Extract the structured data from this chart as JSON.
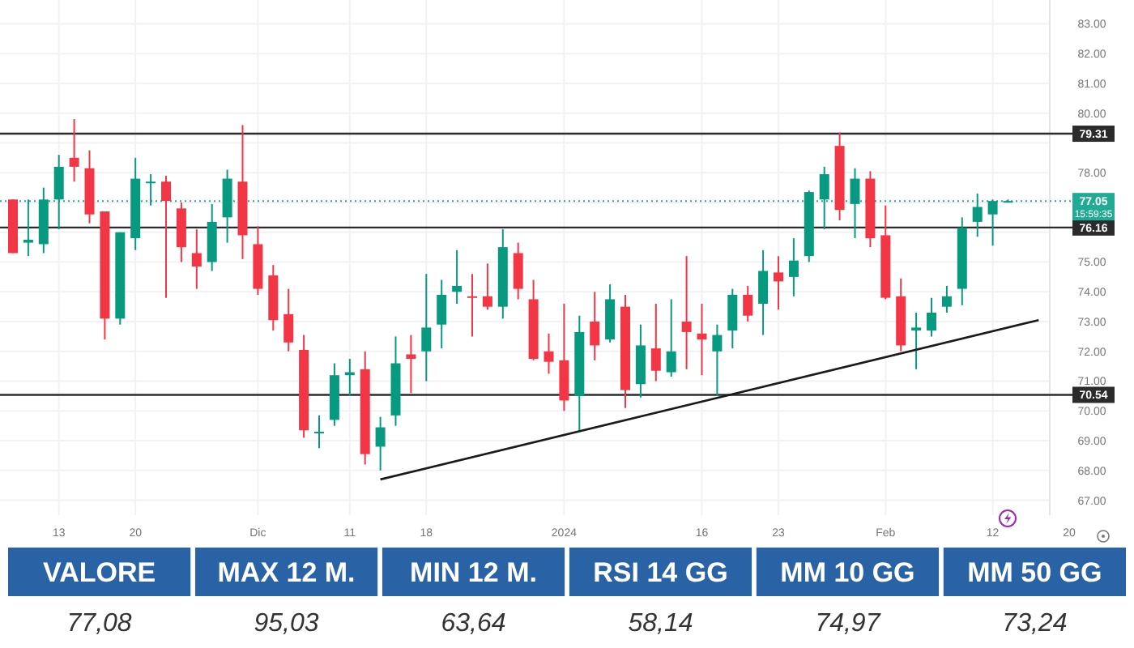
{
  "chart_data": [
    {
      "type": "candlestick",
      "categories": [
        null,
        null,
        null,
        "13",
        null,
        null,
        null,
        null,
        "20",
        null,
        null,
        null,
        null,
        null,
        null,
        null,
        "Dic",
        null,
        null,
        null,
        null,
        null,
        "11",
        null,
        null,
        null,
        null,
        "18",
        null,
        null,
        null,
        null,
        null,
        null,
        null,
        null,
        "2024",
        null,
        null,
        null,
        null,
        null,
        null,
        null,
        null,
        "16",
        null,
        null,
        null,
        null,
        "23",
        null,
        null,
        null,
        null,
        null,
        null,
        "Feb",
        null,
        null,
        null,
        null,
        null,
        null,
        "12",
        null,
        null,
        null,
        null,
        "20",
        null
      ],
      "ohlc": [
        [
          77.1,
          77.1,
          75.3,
          75.3
        ],
        [
          75.65,
          77.1,
          75.2,
          75.75
        ],
        [
          75.6,
          77.5,
          75.3,
          77.1
        ],
        [
          77.1,
          78.6,
          76.1,
          78.2
        ],
        [
          78.5,
          79.8,
          77.7,
          78.2
        ],
        [
          78.15,
          78.75,
          76.3,
          76.6
        ],
        [
          76.7,
          76.7,
          72.4,
          73.1
        ],
        [
          73.1,
          76.0,
          72.9,
          76.0
        ],
        [
          75.8,
          78.5,
          75.4,
          77.8
        ],
        [
          77.65,
          77.95,
          76.9,
          77.7
        ],
        [
          77.7,
          77.9,
          73.8,
          77.05
        ],
        [
          76.8,
          77.0,
          75.0,
          75.5
        ],
        [
          75.3,
          76.1,
          74.1,
          74.85
        ],
        [
          75.0,
          76.95,
          74.7,
          76.35
        ],
        [
          76.5,
          78.1,
          75.65,
          77.8
        ],
        [
          77.7,
          79.6,
          75.1,
          75.9
        ],
        [
          75.6,
          76.2,
          73.9,
          74.1
        ],
        [
          74.55,
          74.9,
          72.7,
          73.05
        ],
        [
          73.25,
          74.1,
          72.0,
          72.3
        ],
        [
          72.05,
          72.55,
          69.1,
          69.35
        ],
        [
          69.25,
          69.85,
          68.75,
          69.3
        ],
        [
          69.7,
          71.6,
          69.5,
          71.2
        ],
        [
          71.2,
          71.75,
          70.5,
          71.3
        ],
        [
          71.4,
          72.0,
          68.2,
          68.55
        ],
        [
          68.8,
          69.8,
          68.0,
          69.45
        ],
        [
          69.85,
          72.5,
          69.5,
          71.6
        ],
        [
          71.9,
          72.55,
          70.6,
          71.75
        ],
        [
          72.0,
          74.6,
          71.0,
          72.8
        ],
        [
          72.9,
          74.4,
          72.1,
          73.9
        ],
        [
          74.0,
          75.4,
          73.6,
          74.2
        ],
        [
          73.85,
          74.6,
          72.5,
          73.8
        ],
        [
          73.85,
          74.95,
          73.4,
          73.5
        ],
        [
          73.5,
          76.1,
          73.1,
          75.5
        ],
        [
          75.3,
          75.65,
          73.75,
          74.1
        ],
        [
          73.75,
          74.4,
          71.7,
          71.75
        ],
        [
          72.0,
          72.6,
          71.25,
          71.65
        ],
        [
          71.7,
          73.6,
          70.0,
          70.35
        ],
        [
          70.5,
          73.2,
          69.3,
          72.65
        ],
        [
          73.0,
          74.0,
          71.7,
          72.2
        ],
        [
          72.4,
          74.25,
          72.3,
          73.75
        ],
        [
          73.5,
          73.9,
          70.1,
          70.7
        ],
        [
          70.9,
          72.9,
          70.45,
          72.2
        ],
        [
          72.1,
          73.6,
          71.0,
          71.35
        ],
        [
          71.3,
          73.75,
          71.15,
          72.0
        ],
        [
          73.0,
          75.2,
          71.4,
          72.65
        ],
        [
          72.6,
          73.6,
          71.2,
          72.4
        ],
        [
          72.0,
          72.9,
          70.5,
          72.55
        ],
        [
          72.7,
          74.1,
          72.1,
          73.9
        ],
        [
          73.9,
          74.2,
          73.0,
          73.2
        ],
        [
          73.6,
          75.4,
          72.55,
          74.7
        ],
        [
          74.65,
          75.2,
          73.4,
          74.35
        ],
        [
          74.5,
          75.8,
          73.85,
          75.05
        ],
        [
          75.2,
          77.4,
          75.0,
          77.35
        ],
        [
          77.1,
          78.2,
          76.1,
          77.95
        ],
        [
          78.9,
          79.35,
          76.4,
          76.75
        ],
        [
          76.95,
          78.15,
          75.8,
          77.8
        ],
        [
          77.8,
          78.05,
          75.5,
          75.8
        ],
        [
          75.9,
          76.9,
          73.75,
          73.8
        ],
        [
          73.85,
          74.45,
          72.0,
          72.2
        ],
        [
          72.7,
          73.3,
          71.4,
          72.8
        ],
        [
          72.7,
          73.8,
          72.5,
          73.3
        ],
        [
          73.5,
          74.2,
          73.3,
          73.85
        ],
        [
          74.1,
          76.5,
          73.55,
          76.15
        ],
        [
          76.35,
          77.3,
          75.85,
          76.85
        ],
        [
          76.6,
          77.1,
          75.55,
          77.05
        ],
        [
          77.05,
          77.1,
          77.0,
          77.05
        ],
        null,
        null,
        null,
        null,
        null
      ],
      "colors": [
        "#f23645",
        "#089981",
        "#089981",
        "#089981",
        "#f23645",
        "#f23645",
        "#f23645",
        "#089981",
        "#089981",
        "#089981",
        "#f23645",
        "#f23645",
        "#f23645",
        "#089981",
        "#089981",
        "#f23645",
        "#f23645",
        "#f23645",
        "#f23645",
        "#f23645",
        "#089981",
        "#089981",
        "#089981",
        "#f23645",
        "#089981",
        "#089981",
        "#f23645",
        "#089981",
        "#089981",
        "#089981",
        "#f23645",
        "#f23645",
        "#089981",
        "#f23645",
        "#f23645",
        "#f23645",
        "#f23645",
        "#089981",
        "#f23645",
        "#089981",
        "#f23645",
        "#089981",
        "#f23645",
        "#089981",
        "#f23645",
        "#f23645",
        "#089981",
        "#089981",
        "#f23645",
        "#089981",
        "#f23645",
        "#089981",
        "#089981",
        "#089981",
        "#f23645",
        "#089981",
        "#f23645",
        "#f23645",
        "#f23645",
        "#089981",
        "#089981",
        "#089981",
        "#089981",
        "#089981",
        "#089981",
        "#089981",
        null,
        null,
        null,
        null,
        null
      ],
      "series": [
        {
          "type": "line",
          "color": "#1a1a1a",
          "values": [
            null,
            null,
            null,
            null,
            null,
            null,
            null,
            null,
            null,
            null,
            null,
            null,
            null,
            null,
            null,
            null,
            null,
            null,
            null,
            null,
            null,
            null,
            null,
            null,
            67.7,
            null,
            null,
            null,
            null,
            null,
            null,
            null,
            null,
            null,
            null,
            null,
            null,
            null,
            null,
            null,
            null,
            null,
            null,
            null,
            null,
            null,
            null,
            null,
            null,
            null,
            null,
            null,
            null,
            null,
            null,
            null,
            null,
            null,
            null,
            null,
            null,
            null,
            null,
            null,
            null,
            null,
            null,
            73.05,
            null,
            null,
            null
          ]
        }
      ],
      "ylim": [
        66.5,
        83.8
      ],
      "yticks": [
        {
          "value": 67,
          "label": "67.00"
        },
        {
          "value": 68,
          "label": "68.00"
        },
        {
          "value": 69,
          "label": "69.00"
        },
        {
          "value": 70,
          "label": "70.00"
        },
        {
          "value": 71,
          "label": "71.00"
        },
        {
          "value": 72,
          "label": "72.00"
        },
        {
          "value": 73,
          "label": "73.00"
        },
        {
          "value": 74,
          "label": "74.00"
        },
        {
          "value": 75,
          "label": "75.00"
        },
        {
          "value": 76,
          "label": null
        },
        {
          "value": 77,
          "label": null
        },
        {
          "value": 78,
          "label": "78.00"
        },
        {
          "value": 79,
          "label": null
        },
        {
          "value": 80,
          "label": "80.00"
        },
        {
          "value": 81,
          "label": "81.00"
        },
        {
          "value": 82,
          "label": "82.00"
        },
        {
          "value": 83,
          "label": "83.00"
        }
      ],
      "grid": true,
      "ref_lines": [
        {
          "axis": "y",
          "value": 79.31,
          "label": "79.31",
          "color": "#2b2b2b"
        },
        {
          "axis": "y",
          "value": 76.16,
          "label": "76.16",
          "color": "#2b2b2b"
        },
        {
          "axis": "y",
          "value": 70.54,
          "label": "70.54",
          "color": "#2b2b2b"
        },
        {
          "axis": "y",
          "value": 77.05,
          "label": "77.05",
          "color": "#22ab94",
          "line_style": "dotted"
        }
      ],
      "annotations": [
        "15:59:35"
      ]
    },
    {
      "type": "other",
      "categories": [
        "VALORE",
        "MAX 12 M.",
        "MIN 12 M.",
        "RSI 14 GG",
        "MM 10 GG",
        "MM 50 GG"
      ],
      "value_labels": [
        "77,08",
        "95,03",
        "63,64",
        "58,14",
        "74,97",
        "73,24"
      ],
      "color": "#2a62a6"
    }
  ]
}
